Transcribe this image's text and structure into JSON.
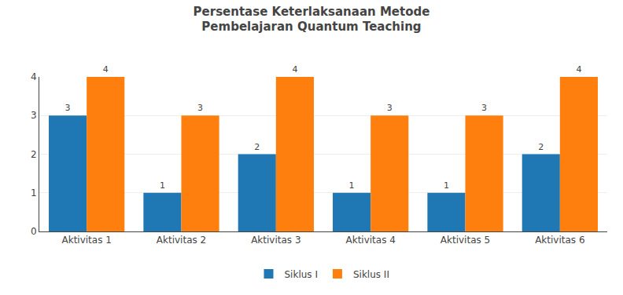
{
  "chart_data": {
    "type": "bar",
    "title": "Persentase Keterlaksanaan Metode\nPembelajaran Quantum Teaching",
    "categories": [
      "Aktivitas 1",
      "Aktivitas 2",
      "Aktivitas 3",
      "Aktivitas 4",
      "Aktivitas 5",
      "Aktivitas 6"
    ],
    "series": [
      {
        "name": "Siklus I",
        "values": [
          3,
          1,
          2,
          1,
          1,
          2
        ]
      },
      {
        "name": "Siklus II",
        "values": [
          4,
          3,
          4,
          3,
          3,
          4
        ]
      }
    ],
    "ylim": [
      0,
      4
    ],
    "yticks": [
      0,
      1,
      2,
      3,
      4
    ],
    "grid": true,
    "legend": "bottom",
    "data_labels": true
  }
}
